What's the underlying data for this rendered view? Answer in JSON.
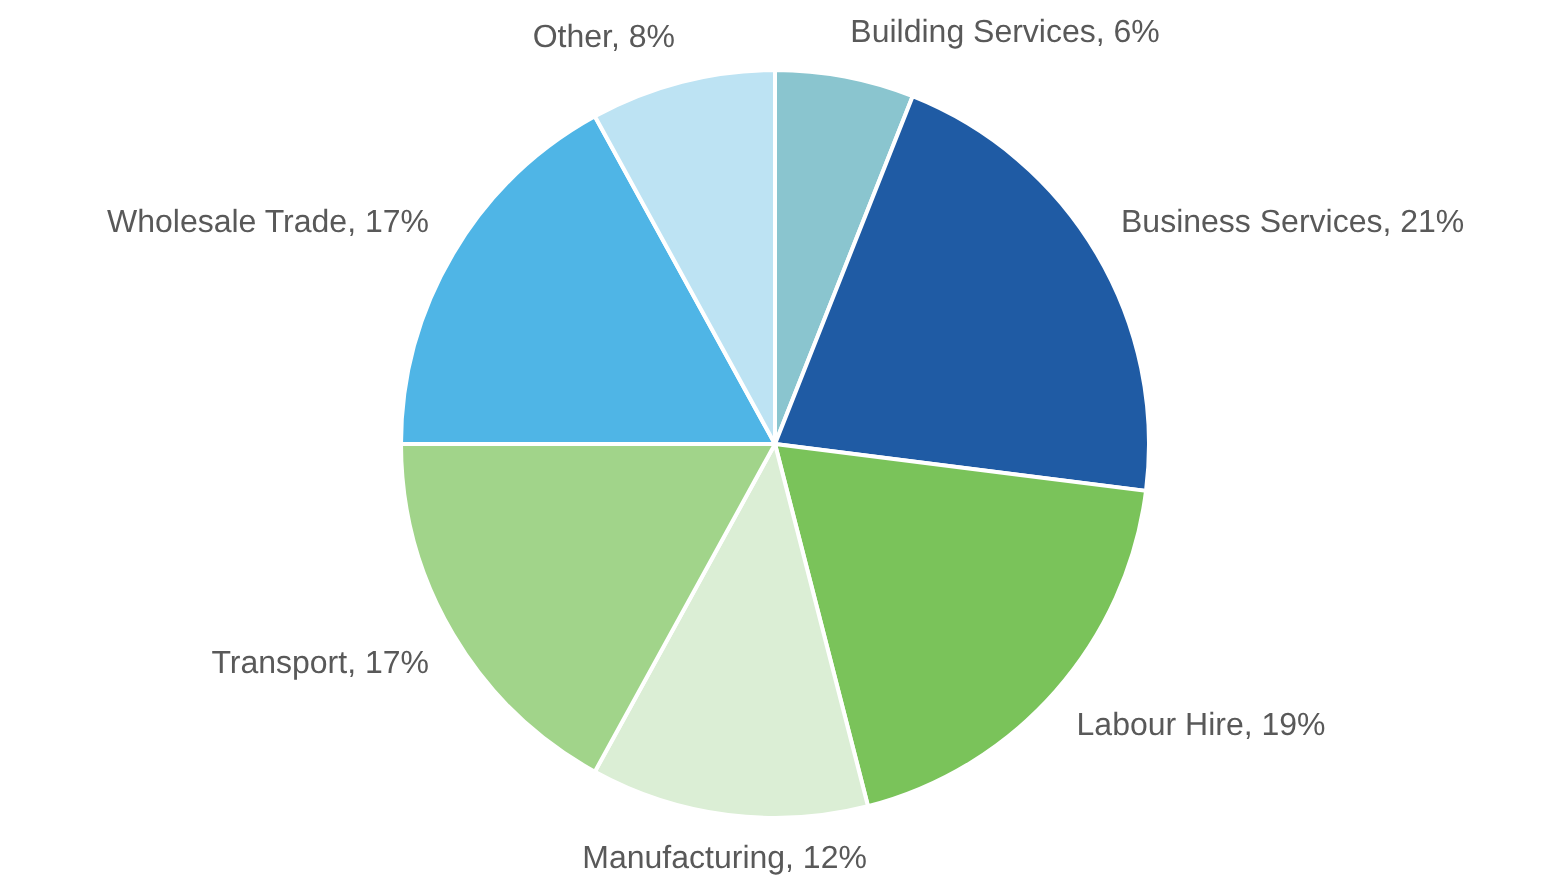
{
  "chart_data": {
    "type": "pie",
    "categories": [
      "Building Services",
      "Business Services",
      "Labour Hire",
      "Manufacturing",
      "Transport",
      "Wholesale Trade",
      "Other"
    ],
    "values": [
      6,
      21,
      19,
      12,
      17,
      17,
      8
    ],
    "value_labels": [
      "6%",
      "21%",
      "19%",
      "12%",
      "17%",
      "17%",
      "8%"
    ],
    "colors": [
      "#8ac5cf",
      "#1f5ba4",
      "#7ac35a",
      "#dbeed5",
      "#a1d48a",
      "#4fb5e6",
      "#bde3f3"
    ],
    "legend": false
  }
}
